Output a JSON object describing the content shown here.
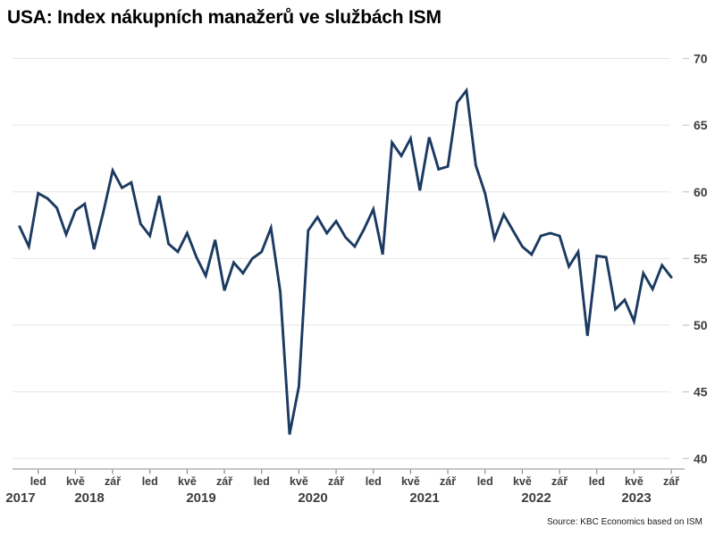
{
  "title": "USA: Index nákupních manažerů ve službách ISM",
  "source": "Source: KBC Economics based on ISM",
  "colors": {
    "line": "#1b3a61",
    "grid": "#e6e6e6",
    "axis": "#b3b3b3",
    "tick": "#8a8a8a",
    "label": "#3d3d3d",
    "title": "#000000"
  },
  "chart_data": {
    "type": "line",
    "title": "USA: Index nákupních manažerů ve službách ISM",
    "xlabel": "",
    "ylabel": "",
    "ylim": [
      40,
      70
    ],
    "yticks": [
      40,
      45,
      50,
      55,
      60,
      65,
      70
    ],
    "grid": "horizontal",
    "legend": "none",
    "x_axis": {
      "month_tick_labels": [
        "led",
        "kvě",
        "zář"
      ],
      "month_tick_positions": [
        0,
        4,
        8
      ],
      "tick_years": [
        2018,
        2019,
        2020,
        2021,
        2022,
        2023
      ],
      "year_labels": [
        "2017",
        "2018",
        "2019",
        "2020",
        "2021",
        "2022",
        "2023"
      ]
    },
    "series": [
      {
        "name": "Index nákupních manažerů ve službách ISM",
        "start_month": "lis",
        "start_year": 2017,
        "end_month": "zář",
        "end_year": 2023,
        "values_by_year": {
          "2017": [
            57.4,
            55.9
          ],
          "2018": [
            59.9,
            59.5,
            58.8,
            56.8,
            58.6,
            59.1,
            55.7,
            58.5,
            61.6,
            60.3,
            60.7,
            57.6
          ],
          "2019": [
            56.7,
            59.7,
            56.1,
            55.5,
            56.9,
            55.1,
            53.7,
            56.4,
            52.6,
            54.7,
            53.9,
            55.0
          ],
          "2020": [
            55.5,
            57.3,
            52.5,
            41.8,
            45.4,
            57.1,
            58.1,
            56.9,
            57.8,
            56.6,
            55.9,
            57.2
          ],
          "2021": [
            58.7,
            55.3,
            63.7,
            62.7,
            64.0,
            60.1,
            64.1,
            61.7,
            61.9,
            66.7,
            67.6,
            62.0
          ],
          "2022": [
            59.9,
            56.5,
            58.3,
            57.1,
            55.9,
            55.3,
            56.7,
            56.9,
            56.7,
            54.4,
            55.5,
            49.2
          ],
          "2023": [
            55.2,
            55.1,
            51.2,
            51.9,
            50.3,
            53.9,
            52.7,
            54.5,
            53.6
          ]
        }
      }
    ]
  }
}
